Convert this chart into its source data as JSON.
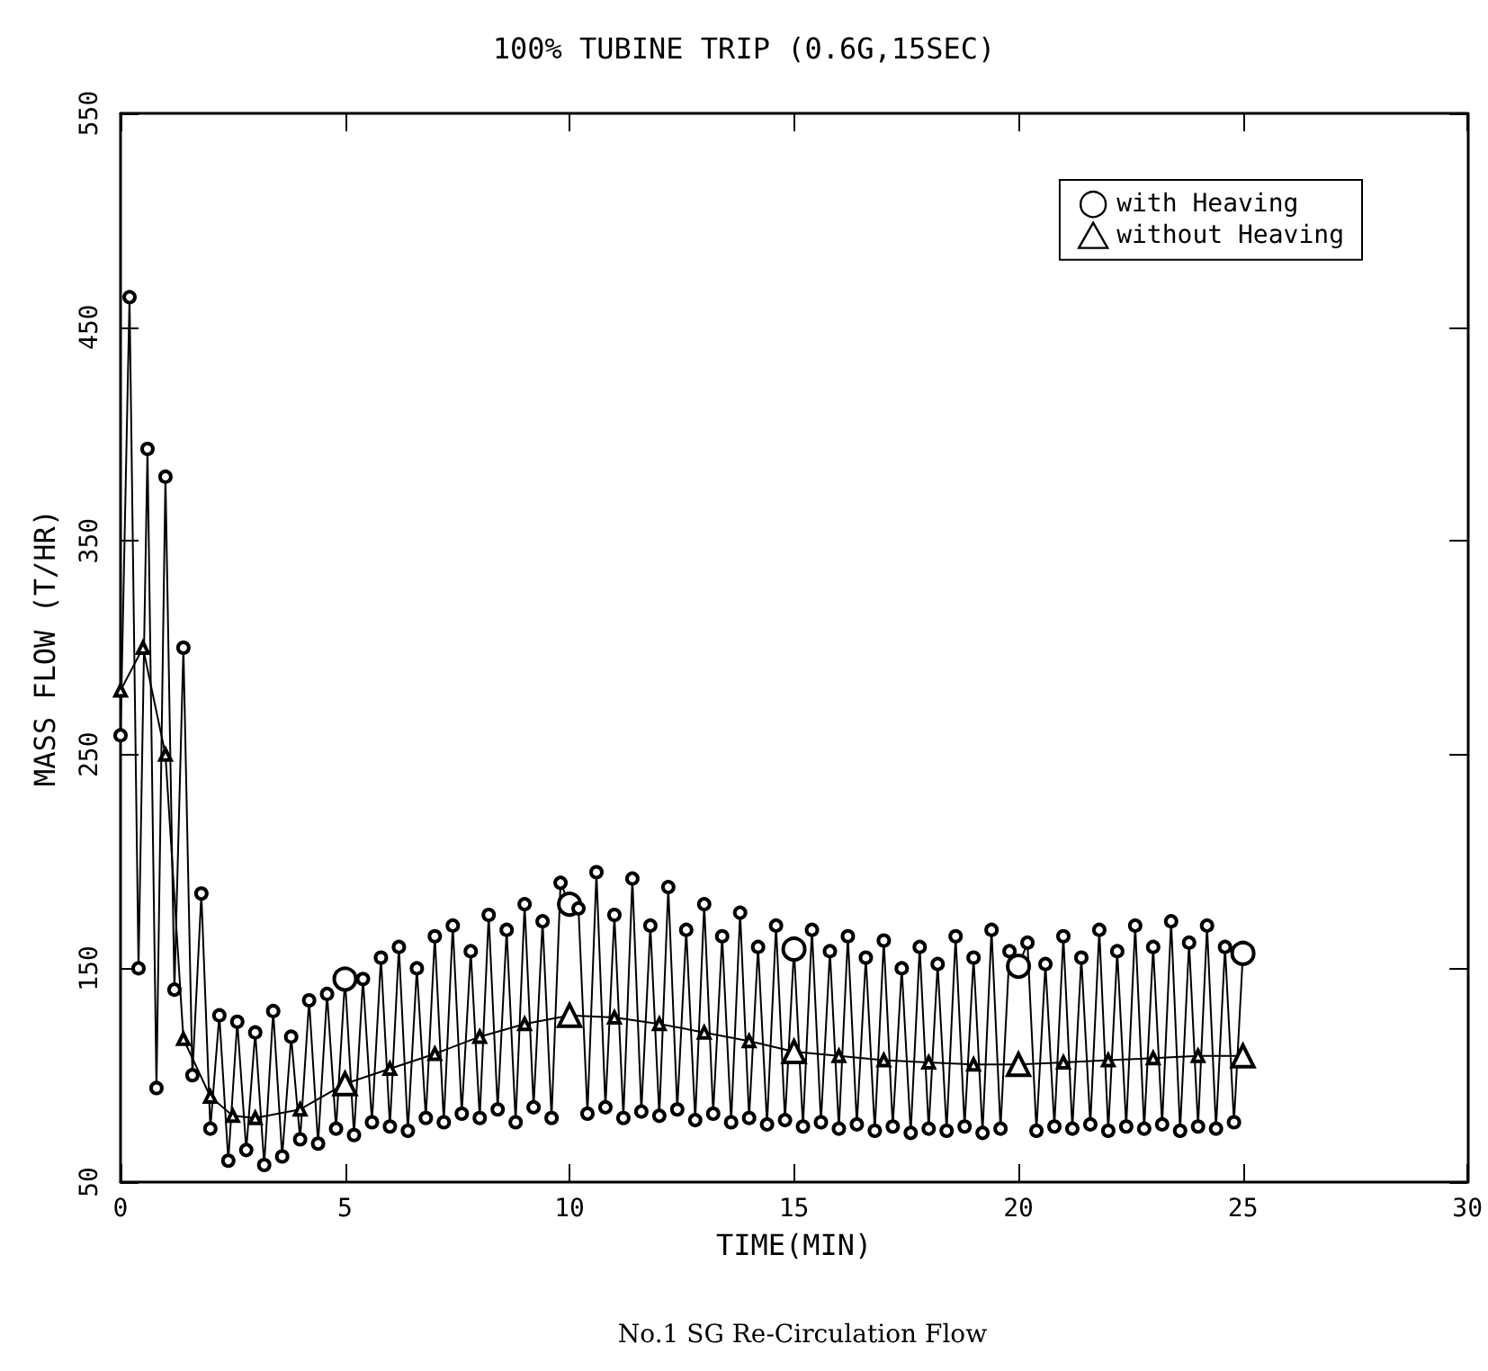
{
  "chart_data": {
    "type": "line",
    "title": "100% TUBINE TRIP (0.6G,15SEC)",
    "xlabel": "TIME(MIN)",
    "ylabel": "MASS FLOW (T/HR)",
    "annotations": [
      "No.1 SG Re-Circulation Flow"
    ],
    "xlim": [
      0,
      30
    ],
    "xticks": [
      0,
      5,
      10,
      15,
      20,
      25,
      30
    ],
    "ylim": [
      50,
      550
    ],
    "yticks": [
      50,
      150,
      250,
      350,
      450,
      550
    ],
    "grid": false,
    "legend": "top right",
    "line_style": "solid",
    "series": [
      {
        "name": "with Heaving",
        "color": "#000000",
        "marker": "circle",
        "x": [
          0,
          0.2,
          0.4,
          0.6,
          0.8,
          1,
          1.2,
          1.4,
          1.6,
          1.8,
          2,
          2.2,
          2.4,
          2.6,
          2.8,
          3,
          3.2,
          3.4,
          3.6,
          3.8,
          4,
          4.2,
          4.4,
          4.6,
          4.8,
          5,
          5.2,
          5.4,
          5.6,
          5.8,
          6,
          6.2,
          6.4,
          6.6,
          6.8,
          7,
          7.2,
          7.4,
          7.6,
          7.8,
          8,
          8.2,
          8.4,
          8.6,
          8.8,
          9,
          9.2,
          9.4,
          9.6,
          9.8,
          10,
          10.2,
          10.4,
          10.6,
          10.8,
          11,
          11.2,
          11.4,
          11.6,
          11.8,
          12,
          12.2,
          12.4,
          12.6,
          12.8,
          13,
          13.2,
          13.4,
          13.6,
          13.8,
          14,
          14.2,
          14.4,
          14.6,
          14.8,
          15,
          15.2,
          15.4,
          15.6,
          15.8,
          16,
          16.2,
          16.4,
          16.6,
          16.8,
          17,
          17.2,
          17.4,
          17.6,
          17.8,
          18,
          18.2,
          18.4,
          18.6,
          18.8,
          19,
          19.2,
          19.4,
          19.6,
          19.8,
          20,
          20.2,
          20.4,
          20.6,
          20.8,
          21,
          21.2,
          21.4,
          21.6,
          21.8,
          22,
          22.2,
          22.4,
          22.6,
          22.8,
          23,
          23.2,
          23.4,
          23.6,
          23.8,
          24,
          24.2,
          24.4,
          24.6,
          24.8,
          25
        ],
        "values": [
          259,
          464,
          150,
          393,
          94,
          380,
          140,
          300,
          100,
          185,
          75,
          128,
          60,
          125,
          65,
          120,
          58,
          130,
          62,
          118,
          70,
          135,
          68,
          138,
          75,
          145,
          72,
          145,
          78,
          155,
          76,
          160,
          74,
          150,
          80,
          165,
          78,
          170,
          82,
          158,
          80,
          175,
          84,
          168,
          78,
          180,
          85,
          172,
          80,
          190,
          180,
          178,
          82,
          195,
          85,
          175,
          80,
          192,
          83,
          170,
          81,
          188,
          84,
          168,
          79,
          180,
          82,
          165,
          78,
          176,
          80,
          160,
          77,
          170,
          79,
          159,
          76,
          168,
          78,
          158,
          75,
          165,
          77,
          155,
          74,
          163,
          76,
          150,
          73,
          160,
          75,
          152,
          74,
          165,
          76,
          155,
          73,
          168,
          75,
          158,
          151,
          162,
          74,
          152,
          76,
          165,
          75,
          155,
          77,
          168,
          74,
          158,
          76,
          170,
          75,
          160,
          77,
          172,
          74,
          162,
          76,
          170,
          75,
          160,
          78,
          157
        ]
      },
      {
        "name": "without Heaving",
        "color": "#000000",
        "marker": "triangle",
        "x": [
          0,
          0.5,
          1,
          1.4,
          2,
          2.5,
          3,
          4,
          5,
          6,
          7,
          8,
          9,
          10,
          11,
          12,
          13,
          14,
          15,
          16,
          17,
          18,
          19,
          20,
          21,
          22,
          23,
          24,
          25
        ],
        "values": [
          280,
          300,
          250,
          117,
          90,
          81,
          80,
          84,
          96,
          103,
          110,
          118,
          124,
          128,
          127,
          124,
          120,
          116,
          111,
          109,
          107,
          106,
          105,
          105,
          106,
          107,
          108,
          109,
          109
        ]
      }
    ]
  }
}
